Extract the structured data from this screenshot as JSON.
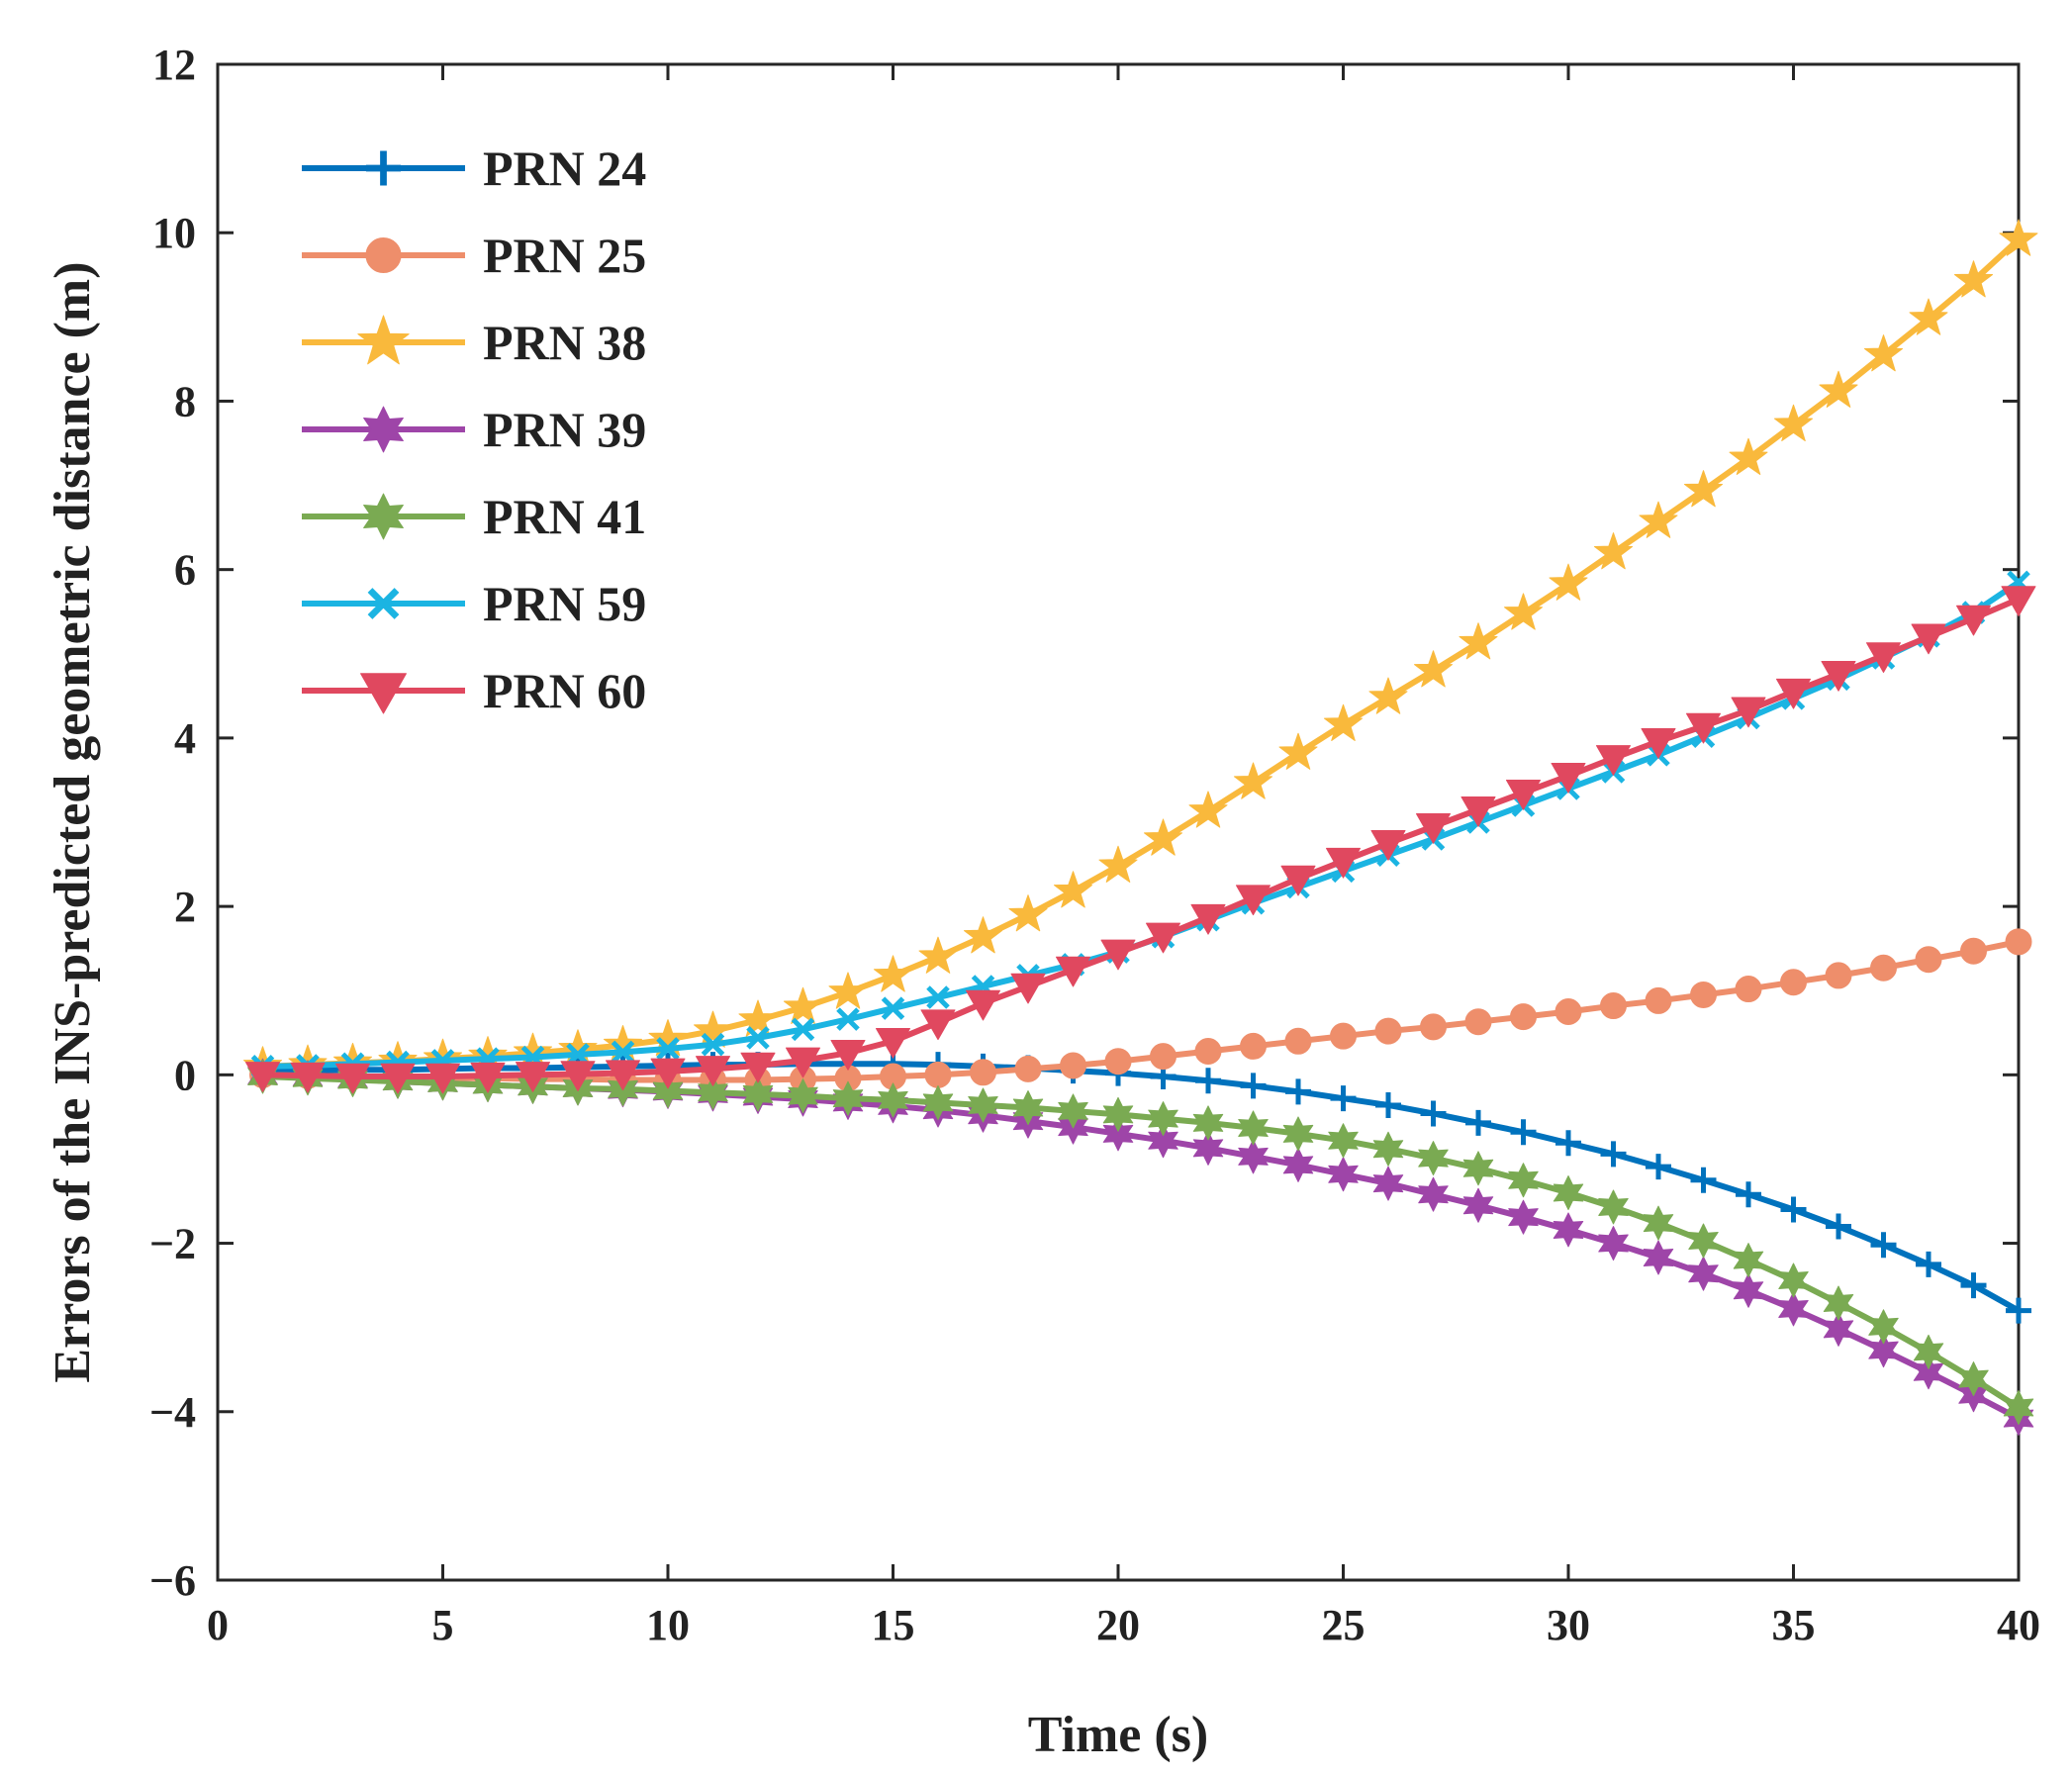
{
  "chart_data": {
    "type": "line",
    "title": "",
    "xlabel": "Time (s)",
    "ylabel": "Errors of the INS-predicted geometric distance (m)",
    "xlim": [
      0,
      40
    ],
    "ylim": [
      -6,
      12
    ],
    "xticks": [
      0,
      5,
      10,
      15,
      20,
      25,
      30,
      35,
      40
    ],
    "yticks": [
      -6,
      -4,
      -2,
      0,
      2,
      4,
      6,
      8,
      10,
      12
    ],
    "xtick_labels": [
      "0",
      "5",
      "10",
      "15",
      "20",
      "25",
      "30",
      "35",
      "40"
    ],
    "ytick_labels": [
      "−6",
      "−4",
      "−2",
      "0",
      "2",
      "4",
      "6",
      "8",
      "10",
      "12"
    ],
    "grid": false,
    "legend_position": "top-left",
    "x": [
      1,
      2,
      3,
      4,
      5,
      6,
      7,
      8,
      9,
      10,
      11,
      12,
      13,
      14,
      15,
      16,
      17,
      18,
      19,
      20,
      21,
      22,
      23,
      24,
      25,
      26,
      27,
      28,
      29,
      30,
      31,
      32,
      33,
      34,
      35,
      36,
      37,
      38,
      39,
      40
    ],
    "series": [
      {
        "name": "PRN 24",
        "color": "#0072BD",
        "marker": "plus",
        "values": [
          0.05,
          0.05,
          0.06,
          0.06,
          0.07,
          0.08,
          0.08,
          0.09,
          0.1,
          0.11,
          0.12,
          0.12,
          0.13,
          0.13,
          0.13,
          0.12,
          0.1,
          0.08,
          0.05,
          0.02,
          -0.02,
          -0.07,
          -0.13,
          -0.2,
          -0.28,
          -0.36,
          -0.46,
          -0.57,
          -0.68,
          -0.81,
          -0.94,
          -1.09,
          -1.25,
          -1.42,
          -1.6,
          -1.8,
          -2.02,
          -2.25,
          -2.5,
          -2.8
        ]
      },
      {
        "name": "PRN 25",
        "color": "#EE8E6B",
        "marker": "circle",
        "values": [
          0.0,
          -0.01,
          -0.02,
          -0.03,
          -0.04,
          -0.04,
          -0.05,
          -0.05,
          -0.06,
          -0.06,
          -0.06,
          -0.06,
          -0.05,
          -0.04,
          -0.02,
          0.0,
          0.03,
          0.07,
          0.11,
          0.16,
          0.22,
          0.28,
          0.34,
          0.4,
          0.46,
          0.52,
          0.57,
          0.63,
          0.69,
          0.75,
          0.82,
          0.88,
          0.95,
          1.02,
          1.1,
          1.18,
          1.27,
          1.37,
          1.47,
          1.58
        ]
      },
      {
        "name": "PRN 38",
        "color": "#F9B93C",
        "marker": "star",
        "values": [
          0.1,
          0.12,
          0.14,
          0.16,
          0.19,
          0.22,
          0.26,
          0.3,
          0.35,
          0.42,
          0.52,
          0.65,
          0.8,
          0.98,
          1.18,
          1.4,
          1.64,
          1.9,
          2.18,
          2.48,
          2.8,
          3.13,
          3.47,
          3.82,
          4.16,
          4.48,
          4.8,
          5.13,
          5.48,
          5.83,
          6.2,
          6.57,
          6.94,
          7.32,
          7.72,
          8.12,
          8.55,
          8.98,
          9.43,
          9.92
        ]
      },
      {
        "name": "PRN 39",
        "color": "#9E45A8",
        "marker": "hexagram",
        "values": [
          -0.01,
          -0.03,
          -0.05,
          -0.08,
          -0.1,
          -0.12,
          -0.14,
          -0.16,
          -0.18,
          -0.2,
          -0.23,
          -0.26,
          -0.29,
          -0.33,
          -0.37,
          -0.42,
          -0.48,
          -0.55,
          -0.62,
          -0.7,
          -0.78,
          -0.87,
          -0.97,
          -1.07,
          -1.18,
          -1.29,
          -1.42,
          -1.55,
          -1.69,
          -1.84,
          -2.0,
          -2.17,
          -2.36,
          -2.56,
          -2.78,
          -3.02,
          -3.27,
          -3.53,
          -3.8,
          -4.08
        ]
      },
      {
        "name": "PRN 41",
        "color": "#7AAA52",
        "marker": "hexagram",
        "values": [
          -0.02,
          -0.04,
          -0.06,
          -0.08,
          -0.1,
          -0.12,
          -0.14,
          -0.16,
          -0.17,
          -0.19,
          -0.21,
          -0.23,
          -0.25,
          -0.28,
          -0.3,
          -0.33,
          -0.36,
          -0.39,
          -0.43,
          -0.47,
          -0.52,
          -0.57,
          -0.63,
          -0.7,
          -0.78,
          -0.88,
          -0.99,
          -1.11,
          -1.25,
          -1.4,
          -1.57,
          -1.76,
          -1.97,
          -2.2,
          -2.44,
          -2.71,
          -2.99,
          -3.29,
          -3.61,
          -3.95
        ]
      },
      {
        "name": "PRN 59",
        "color": "#1BB4E2",
        "marker": "x",
        "values": [
          0.1,
          0.11,
          0.13,
          0.15,
          0.17,
          0.19,
          0.21,
          0.24,
          0.27,
          0.31,
          0.36,
          0.44,
          0.54,
          0.66,
          0.79,
          0.92,
          1.05,
          1.18,
          1.31,
          1.46,
          1.64,
          1.84,
          2.04,
          2.23,
          2.42,
          2.61,
          2.8,
          3.0,
          3.2,
          3.4,
          3.6,
          3.8,
          4.02,
          4.24,
          4.47,
          4.7,
          4.95,
          5.21,
          5.49,
          5.85
        ]
      },
      {
        "name": "PRN 60",
        "color": "#E0485F",
        "marker": "triangle-down",
        "values": [
          0.0,
          -0.01,
          -0.02,
          -0.02,
          -0.02,
          -0.01,
          0.0,
          0.01,
          0.02,
          0.04,
          0.07,
          0.11,
          0.17,
          0.26,
          0.4,
          0.62,
          0.85,
          1.05,
          1.25,
          1.45,
          1.65,
          1.87,
          2.1,
          2.33,
          2.54,
          2.75,
          2.95,
          3.15,
          3.35,
          3.55,
          3.76,
          3.96,
          4.14,
          4.33,
          4.55,
          4.76,
          4.98,
          5.2,
          5.42,
          5.65
        ]
      }
    ]
  }
}
